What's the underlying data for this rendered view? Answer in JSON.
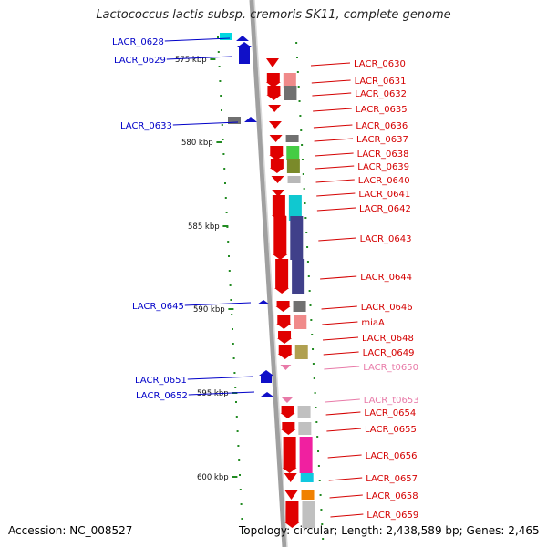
{
  "title": "Lactococcus lactis subsp. cremoris SK11, complete genome",
  "footer": {
    "accession": "Accession: NC_008527",
    "summary": "Topology: circular; Length: 2,438,589 bp; Genes: 2,465"
  },
  "colors": {
    "backbone": "#a0a0a0",
    "forward_label": "#0000c8",
    "reverse_label": "#d40000",
    "trna_label": "#e87aa8",
    "tick": "#228b22"
  },
  "scale": {
    "unit": "kbp",
    "labels": [
      {
        "kbp": 575,
        "text": "575 kbp"
      },
      {
        "kbp": 580,
        "text": "580 kbp"
      },
      {
        "kbp": 585,
        "text": "585 kbp"
      },
      {
        "kbp": 590,
        "text": "590 kbp"
      },
      {
        "kbp": 595,
        "text": "595 kbp"
      },
      {
        "kbp": 600,
        "text": "600 kbp"
      }
    ]
  },
  "forward_genes": [
    {
      "label": "LACR_0628",
      "color": "#00d8e0"
    },
    {
      "label": "LACR_0629",
      "color": "#1a2ab0"
    },
    {
      "label": "LACR_0633",
      "color": "#707070"
    },
    {
      "label": "LACR_0645",
      "color": "#1a2ab0"
    },
    {
      "label": "LACR_0651",
      "color": "#1a2ab0"
    },
    {
      "label": "LACR_0652",
      "color": "#1a2ab0"
    }
  ],
  "reverse_genes": [
    {
      "label": "LACR_0630",
      "color": "#e01010",
      "type": "gene"
    },
    {
      "label": "LACR_0631",
      "color": "#f08a8a",
      "type": "gene"
    },
    {
      "label": "LACR_0632",
      "color": "#707070",
      "type": "gene"
    },
    {
      "label": "LACR_0635",
      "color": "#e01010",
      "type": "gene"
    },
    {
      "label": "LACR_0636",
      "color": "#e01010",
      "type": "gene"
    },
    {
      "label": "LACR_0637",
      "color": "#707070",
      "type": "gene"
    },
    {
      "label": "LACR_0638",
      "color": "#44cc44",
      "type": "gene"
    },
    {
      "label": "LACR_0639",
      "color": "#7a8a2a",
      "type": "gene"
    },
    {
      "label": "LACR_0640",
      "color": "#b8b8b8",
      "type": "gene"
    },
    {
      "label": "LACR_0641",
      "color": "#e01010",
      "type": "gene"
    },
    {
      "label": "LACR_0642",
      "color": "#10c8d0",
      "type": "gene"
    },
    {
      "label": "LACR_0643",
      "color": "#40408a",
      "type": "gene"
    },
    {
      "label": "LACR_0644",
      "color": "#40408a",
      "type": "gene"
    },
    {
      "label": "LACR_0646",
      "color": "#707070",
      "type": "gene"
    },
    {
      "label": "miaA",
      "color": "#f08a8a",
      "type": "gene"
    },
    {
      "label": "LACR_0648",
      "color": "#e01010",
      "type": "gene"
    },
    {
      "label": "LACR_0649",
      "color": "#b0a050",
      "type": "gene"
    },
    {
      "label": "LACR_t0650",
      "color": "#e87aa8",
      "type": "tRNA"
    },
    {
      "label": "LACR_t0653",
      "color": "#e87aa8",
      "type": "tRNA"
    },
    {
      "label": "LACR_0654",
      "color": "#c0c0c0",
      "type": "gene"
    },
    {
      "label": "LACR_0655",
      "color": "#c0c0c0",
      "type": "gene"
    },
    {
      "label": "LACR_0656",
      "color": "#f020a0",
      "type": "gene"
    },
    {
      "label": "LACR_0657",
      "color": "#10c8e0",
      "type": "gene"
    },
    {
      "label": "LACR_0658",
      "color": "#f08000",
      "type": "gene"
    },
    {
      "label": "LACR_0659",
      "color": "#c0c0c0",
      "type": "gene"
    }
  ]
}
